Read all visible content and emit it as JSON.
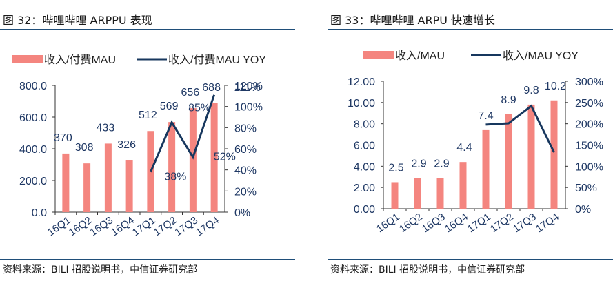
{
  "charts": [
    {
      "title": "图 32：哔哩哔哩 ARPPU 表现",
      "source": "资料来源：BILI 招股说明书，中信证券研究部",
      "chart_data": {
        "type": "bar",
        "categories": [
          "16Q1",
          "16Q2",
          "16Q3",
          "16Q4",
          "17Q1",
          "17Q2",
          "17Q3",
          "17Q4"
        ],
        "series": [
          {
            "name": "收入/付费MAU",
            "type": "bar",
            "axis": "left",
            "color": "#f4857f",
            "values": [
              370,
              308,
              433,
              326,
              512,
              569,
              656,
              688
            ],
            "labels": [
              "370",
              "308",
              "433",
              "326",
              "512",
              "569",
              "656",
              "688"
            ]
          },
          {
            "name": "收入/付费MAU YOY",
            "type": "line",
            "axis": "right",
            "color": "#17375e",
            "values": [
              null,
              null,
              null,
              null,
              0.38,
              0.85,
              0.52,
              1.11
            ],
            "labels": [
              "",
              "",
              "",
              "",
              "38%",
              "85%",
              "52%",
              "111%"
            ]
          }
        ],
        "ylim": [
          0,
          800
        ],
        "yticks": [
          "0.0",
          "200.0",
          "400.0",
          "600.0",
          "800.0"
        ],
        "y2lim": [
          0,
          1.2
        ],
        "y2ticks": [
          "0%",
          "20%",
          "40%",
          "60%",
          "80%",
          "100%",
          "120%"
        ],
        "legend_position": "top",
        "grid": false
      }
    },
    {
      "title": "图 33：哔哩哔哩 ARPU 快速增长",
      "source": "资料来源：BILI 招股说明书，中信证券研究部",
      "chart_data": {
        "type": "bar",
        "categories": [
          "16Q1",
          "16Q2",
          "16Q3",
          "16Q4",
          "17Q1",
          "17Q2",
          "17Q3",
          "17Q4"
        ],
        "series": [
          {
            "name": "收入/MAU",
            "type": "bar",
            "axis": "left",
            "color": "#f4857f",
            "values": [
              2.5,
              2.9,
              2.9,
              4.4,
              7.4,
              8.9,
              9.8,
              10.2
            ],
            "labels": [
              "2.5",
              "2.9",
              "2.9",
              "4.4",
              "7.4",
              "8.9",
              "9.8",
              "10.2"
            ]
          },
          {
            "name": "收入/MAU YOY",
            "type": "line",
            "axis": "right",
            "color": "#17375e",
            "values": [
              null,
              null,
              null,
              null,
              1.98,
              2.01,
              2.42,
              1.33
            ],
            "labels": [
              "",
              "",
              "",
              "",
              "",
              "",
              "",
              ""
            ]
          }
        ],
        "ylim": [
          0,
          12
        ],
        "yticks": [
          "0.00",
          "2.00",
          "4.00",
          "6.00",
          "8.00",
          "10.00",
          "12.00"
        ],
        "y2lim": [
          0,
          3
        ],
        "y2ticks": [
          "0%",
          "50%",
          "100%",
          "150%",
          "200%",
          "250%",
          "300%"
        ],
        "legend_position": "top",
        "grid": false
      }
    }
  ]
}
